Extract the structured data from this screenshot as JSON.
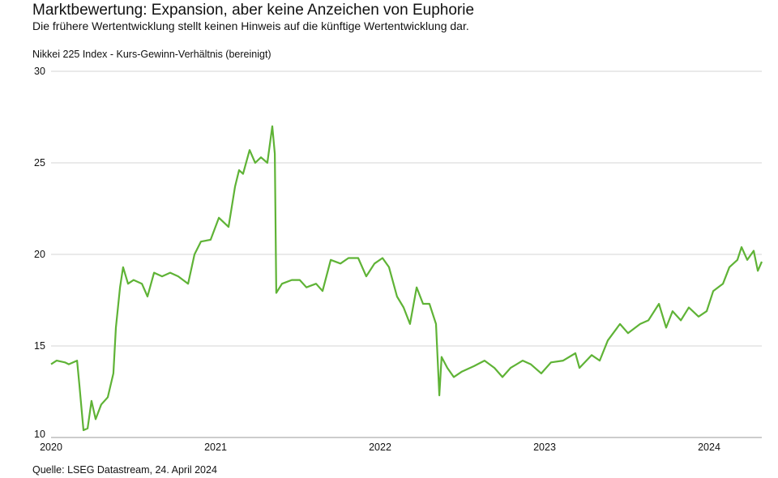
{
  "header": {
    "title": "Marktbewertung: Expansion, aber keine Anzeichen von Euphorie",
    "subtitle": "Die frühere Wertentwicklung stellt keinen Hinweis auf die künftige Wertentwicklung dar."
  },
  "footer": {
    "source": "Quelle: LSEG Datastream, 24. April 2024"
  },
  "chart_data": {
    "type": "line",
    "title": "Marktbewertung: Expansion, aber keine Anzeichen von Euphorie",
    "ylabel": "Nikkei 225 Index - Kurs-Gewinn-Verhältnis (bereinigt)",
    "xlabel": "",
    "ylim": [
      10,
      30
    ],
    "xlim": [
      2020,
      2024.32
    ],
    "yticks": [
      "10",
      "15",
      "20",
      "25",
      "30"
    ],
    "ytick_values": [
      10,
      15,
      20,
      25,
      30
    ],
    "xticks": [
      "2020",
      "2021",
      "2022",
      "2023",
      "2024"
    ],
    "xtick_values": [
      2020,
      2021,
      2022,
      2023,
      2024
    ],
    "grid": true,
    "series": [
      {
        "name": "Nikkei 225 KGV (bereinigt)",
        "color": "#5fb336",
        "x": [
          2020.0,
          2020.034,
          2020.084,
          2020.108,
          2020.158,
          2020.172,
          2020.197,
          2020.222,
          2020.246,
          2020.271,
          2020.305,
          2020.345,
          2020.379,
          2020.394,
          2020.419,
          2020.438,
          2020.468,
          2020.502,
          2020.552,
          2020.586,
          2020.626,
          2020.675,
          2020.724,
          2020.773,
          2020.833,
          2020.872,
          2020.911,
          2020.97,
          2021.02,
          2021.079,
          2021.118,
          2021.143,
          2021.167,
          2021.207,
          2021.241,
          2021.276,
          2021.315,
          2021.345,
          2021.36,
          2021.369,
          2021.404,
          2021.463,
          2021.512,
          2021.552,
          2021.611,
          2021.65,
          2021.7,
          2021.759,
          2021.808,
          2021.867,
          2021.916,
          2021.966,
          2022.015,
          2022.054,
          2022.103,
          2022.143,
          2022.182,
          2022.222,
          2022.261,
          2022.3,
          2022.34,
          2022.36,
          2022.374,
          2022.409,
          2022.448,
          2022.498,
          2022.571,
          2022.635,
          2022.695,
          2022.744,
          2022.793,
          2022.867,
          2022.916,
          2022.98,
          2023.039,
          2023.113,
          2023.187,
          2023.212,
          2023.286,
          2023.335,
          2023.384,
          2023.458,
          2023.507,
          2023.581,
          2023.631,
          2023.695,
          2023.739,
          2023.778,
          2023.828,
          2023.877,
          2023.936,
          2023.985,
          2024.025,
          2024.084,
          2024.123,
          2024.172,
          2024.197,
          2024.232,
          2024.271,
          2024.296,
          2024.32
        ],
        "values": [
          14.0,
          14.2,
          14.1,
          14.0,
          14.2,
          12.9,
          10.4,
          10.5,
          12.0,
          11.0,
          11.8,
          12.2,
          13.5,
          16.0,
          18.2,
          19.3,
          18.4,
          18.6,
          18.4,
          17.7,
          19.0,
          18.8,
          19.0,
          18.8,
          18.4,
          20.0,
          20.7,
          20.8,
          22.0,
          21.5,
          23.7,
          24.6,
          24.4,
          25.7,
          25.0,
          25.3,
          25.0,
          27.0,
          25.5,
          17.9,
          18.4,
          18.6,
          18.6,
          18.2,
          18.4,
          18.0,
          19.7,
          19.5,
          19.8,
          19.8,
          18.8,
          19.5,
          19.8,
          19.3,
          17.7,
          17.1,
          16.2,
          18.2,
          17.3,
          17.3,
          16.2,
          12.3,
          14.4,
          13.8,
          13.3,
          13.6,
          13.9,
          14.2,
          13.8,
          13.3,
          13.8,
          14.2,
          14.0,
          13.5,
          14.1,
          14.2,
          14.6,
          13.8,
          14.5,
          14.2,
          15.3,
          16.2,
          15.7,
          16.2,
          16.4,
          17.3,
          16.0,
          16.9,
          16.4,
          17.1,
          16.6,
          16.9,
          18.0,
          18.4,
          19.3,
          19.7,
          20.4,
          19.7,
          20.2,
          19.1,
          19.6
        ]
      }
    ]
  }
}
